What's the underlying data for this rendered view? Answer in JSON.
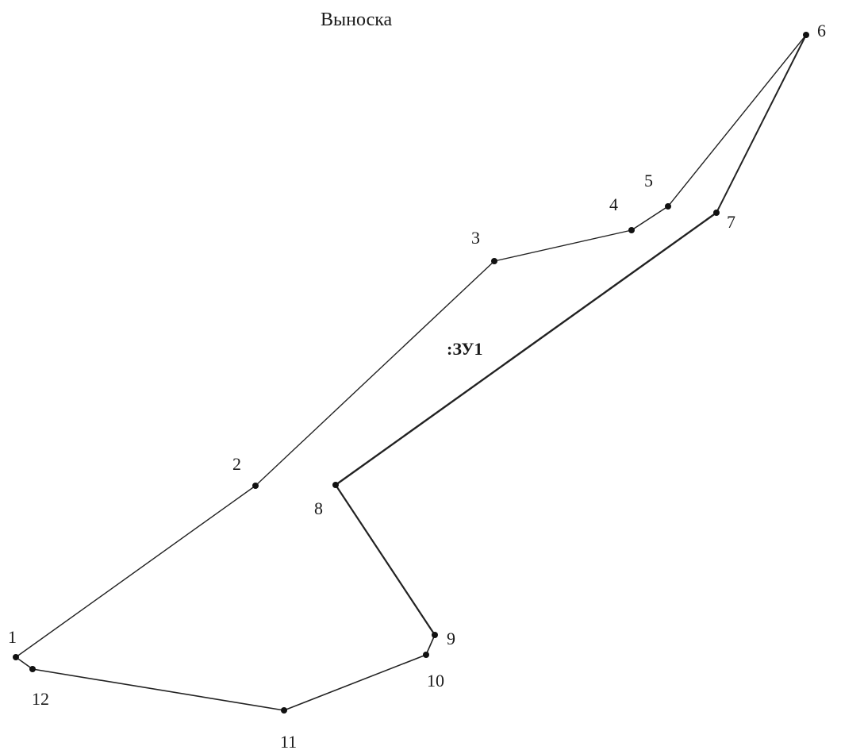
{
  "diagram": {
    "title": "Выноска",
    "parcel_label": ":ЗУ1",
    "colors": {
      "line": "#222222",
      "point": "#111111",
      "text": "#1a1a1a"
    },
    "points": [
      {
        "id": "1",
        "label": "1"
      },
      {
        "id": "2",
        "label": "2"
      },
      {
        "id": "3",
        "label": "3"
      },
      {
        "id": "4",
        "label": "4"
      },
      {
        "id": "5",
        "label": "5"
      },
      {
        "id": "6",
        "label": "6"
      },
      {
        "id": "7",
        "label": "7"
      },
      {
        "id": "8",
        "label": "8"
      },
      {
        "id": "9",
        "label": "9"
      },
      {
        "id": "10",
        "label": "10"
      },
      {
        "id": "11",
        "label": "11"
      },
      {
        "id": "12",
        "label": "12"
      }
    ]
  }
}
